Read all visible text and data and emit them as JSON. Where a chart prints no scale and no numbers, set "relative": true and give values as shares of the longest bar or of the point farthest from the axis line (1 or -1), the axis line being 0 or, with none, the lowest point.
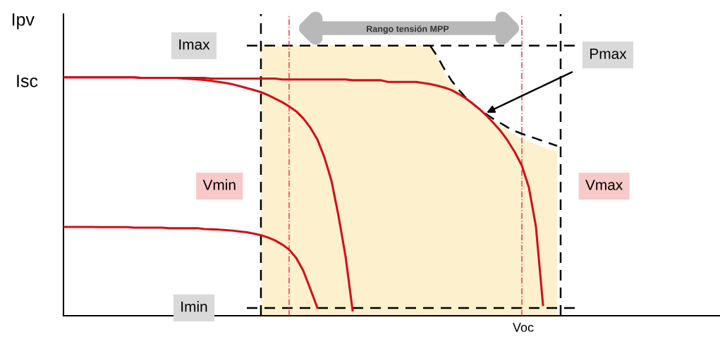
{
  "chart_data": {
    "type": "line",
    "relative": true,
    "ylabel": "Ipv",
    "categories": [
      null,
      null,
      null,
      null,
      null,
      null,
      null,
      null,
      null,
      null,
      null,
      null,
      null,
      null,
      null,
      null,
      null,
      null,
      null,
      null,
      null,
      null,
      null,
      null,
      null,
      null,
      null,
      null,
      null,
      null,
      null,
      null,
      null,
      null,
      null,
      null,
      null,
      null,
      null,
      null,
      null,
      null,
      null,
      null,
      null,
      null,
      null,
      null,
      null,
      null,
      null,
      null,
      null,
      null,
      null,
      null,
      null,
      null,
      null,
      null,
      null,
      null,
      null,
      null,
      null,
      null,
      null,
      null,
      null,
      null,
      null
    ],
    "series": [
      {
        "type": "area",
        "color": "#fdf0cc",
        "values": [
          null,
          null,
          null,
          null,
          null,
          null,
          null,
          null,
          null,
          null,
          null,
          null,
          null,
          null,
          null,
          null,
          null,
          null,
          null,
          null,
          null,
          null,
          null,
          null,
          null,
          null,
          null,
          null,
          1.0,
          1.0,
          1.0,
          1.0,
          1.0,
          1.0,
          1.0,
          1.0,
          1.0,
          1.0,
          1.0,
          1.0,
          1.0,
          1.0,
          1.0,
          1.0,
          1.0,
          1.0,
          1.0,
          1.0,
          1.0,
          1.0,
          1.0,
          1.0,
          1.0,
          0.955,
          0.9,
          0.86,
          0.83,
          0.8,
          0.78,
          0.76,
          0.74,
          0.72,
          0.7,
          0.685,
          0.67,
          0.655,
          0.645,
          0.635,
          0.625,
          0.615,
          0.61
        ]
      },
      {
        "type": "line",
        "color": "#000000",
        "line_style": "dashed",
        "values": [
          null,
          null,
          null,
          null,
          null,
          null,
          null,
          null,
          null,
          null,
          null,
          null,
          null,
          null,
          null,
          null,
          null,
          null,
          null,
          null,
          null,
          null,
          null,
          null,
          null,
          null,
          null,
          null,
          null,
          null,
          null,
          null,
          null,
          null,
          null,
          null,
          null,
          null,
          null,
          null,
          null,
          null,
          null,
          null,
          null,
          null,
          null,
          null,
          null,
          null,
          null,
          null,
          1.0,
          0.961,
          0.914,
          0.872,
          0.838,
          0.809,
          0.786,
          0.765,
          0.746,
          0.728,
          0.713,
          0.697,
          0.684,
          0.674,
          0.665,
          0.656,
          0.647,
          0.638,
          0.629
        ]
      },
      {
        "color": "#d0101a",
        "line_style": "solid",
        "values": [
          0.883,
          0.883,
          0.883,
          0.883,
          0.883,
          0.883,
          0.883,
          0.883,
          0.883,
          0.883,
          0.883,
          0.881,
          0.881,
          0.881,
          0.881,
          0.881,
          0.881,
          0.881,
          0.881,
          0.881,
          0.881,
          0.878,
          0.878,
          0.878,
          0.878,
          0.878,
          0.878,
          0.878,
          0.878,
          0.878,
          0.878,
          0.875,
          0.875,
          0.875,
          0.875,
          0.875,
          0.875,
          0.875,
          0.875,
          0.875,
          0.875,
          0.872,
          0.872,
          0.872,
          0.872,
          0.872,
          0.866,
          0.866,
          0.866,
          0.866,
          0.866,
          0.862,
          0.858,
          0.852,
          0.845,
          0.836,
          0.822,
          0.806,
          0.786,
          0.765,
          0.741,
          0.713,
          0.684,
          0.648,
          0.606,
          0.556,
          0.475,
          0.33,
          0.04,
          null,
          null
        ]
      },
      {
        "color": "#d0101a",
        "line_style": "solid",
        "values": [
          0.883,
          0.883,
          0.883,
          0.883,
          0.883,
          0.883,
          0.883,
          0.883,
          0.883,
          0.883,
          0.883,
          0.881,
          0.881,
          0.881,
          0.881,
          0.881,
          0.881,
          0.878,
          0.877,
          0.875,
          0.873,
          0.87,
          0.866,
          0.862,
          0.857,
          0.85,
          0.843,
          0.836,
          0.828,
          0.817,
          0.804,
          0.791,
          0.775,
          0.757,
          0.731,
          0.697,
          0.653,
          0.587,
          0.5,
          0.37,
          0.22,
          0.02,
          null,
          null,
          null,
          null,
          null,
          null,
          null,
          null,
          null,
          null,
          null,
          null,
          null,
          null,
          null,
          null,
          null,
          null,
          null,
          null,
          null,
          null,
          null,
          null,
          null,
          null,
          null,
          null,
          null
        ]
      },
      {
        "color": "#d0101a",
        "line_style": "solid",
        "values": [
          0.329,
          0.329,
          0.329,
          0.329,
          0.329,
          0.328,
          0.328,
          0.328,
          0.328,
          0.328,
          0.326,
          0.326,
          0.326,
          0.326,
          0.326,
          0.324,
          0.324,
          0.324,
          0.324,
          0.324,
          0.321,
          0.32,
          0.319,
          0.317,
          0.315,
          0.312,
          0.309,
          0.304,
          0.298,
          0.29,
          0.279,
          0.264,
          0.245,
          0.214,
          0.167,
          0.1,
          0.03,
          null,
          null,
          null,
          null,
          null,
          null,
          null,
          null,
          null,
          null,
          null,
          null,
          null,
          null,
          null,
          null,
          null,
          null,
          null,
          null,
          null,
          null,
          null,
          null,
          null,
          null,
          null,
          null,
          null,
          null,
          null,
          null,
          null,
          null
        ]
      }
    ],
    "ref_lines": [
      {
        "axis": "y",
        "value": 1.0,
        "label": "Imax",
        "color": "#000000",
        "line_style": "dashed"
      },
      {
        "axis": "y",
        "value": 0.029,
        "label": "Imin",
        "color": "#000000",
        "line_style": "dashed"
      }
    ],
    "annotations": [
      "Isc",
      "Rango tensión MPP",
      "Pmax",
      "Voc",
      "Vmin",
      "Vmax"
    ]
  }
}
